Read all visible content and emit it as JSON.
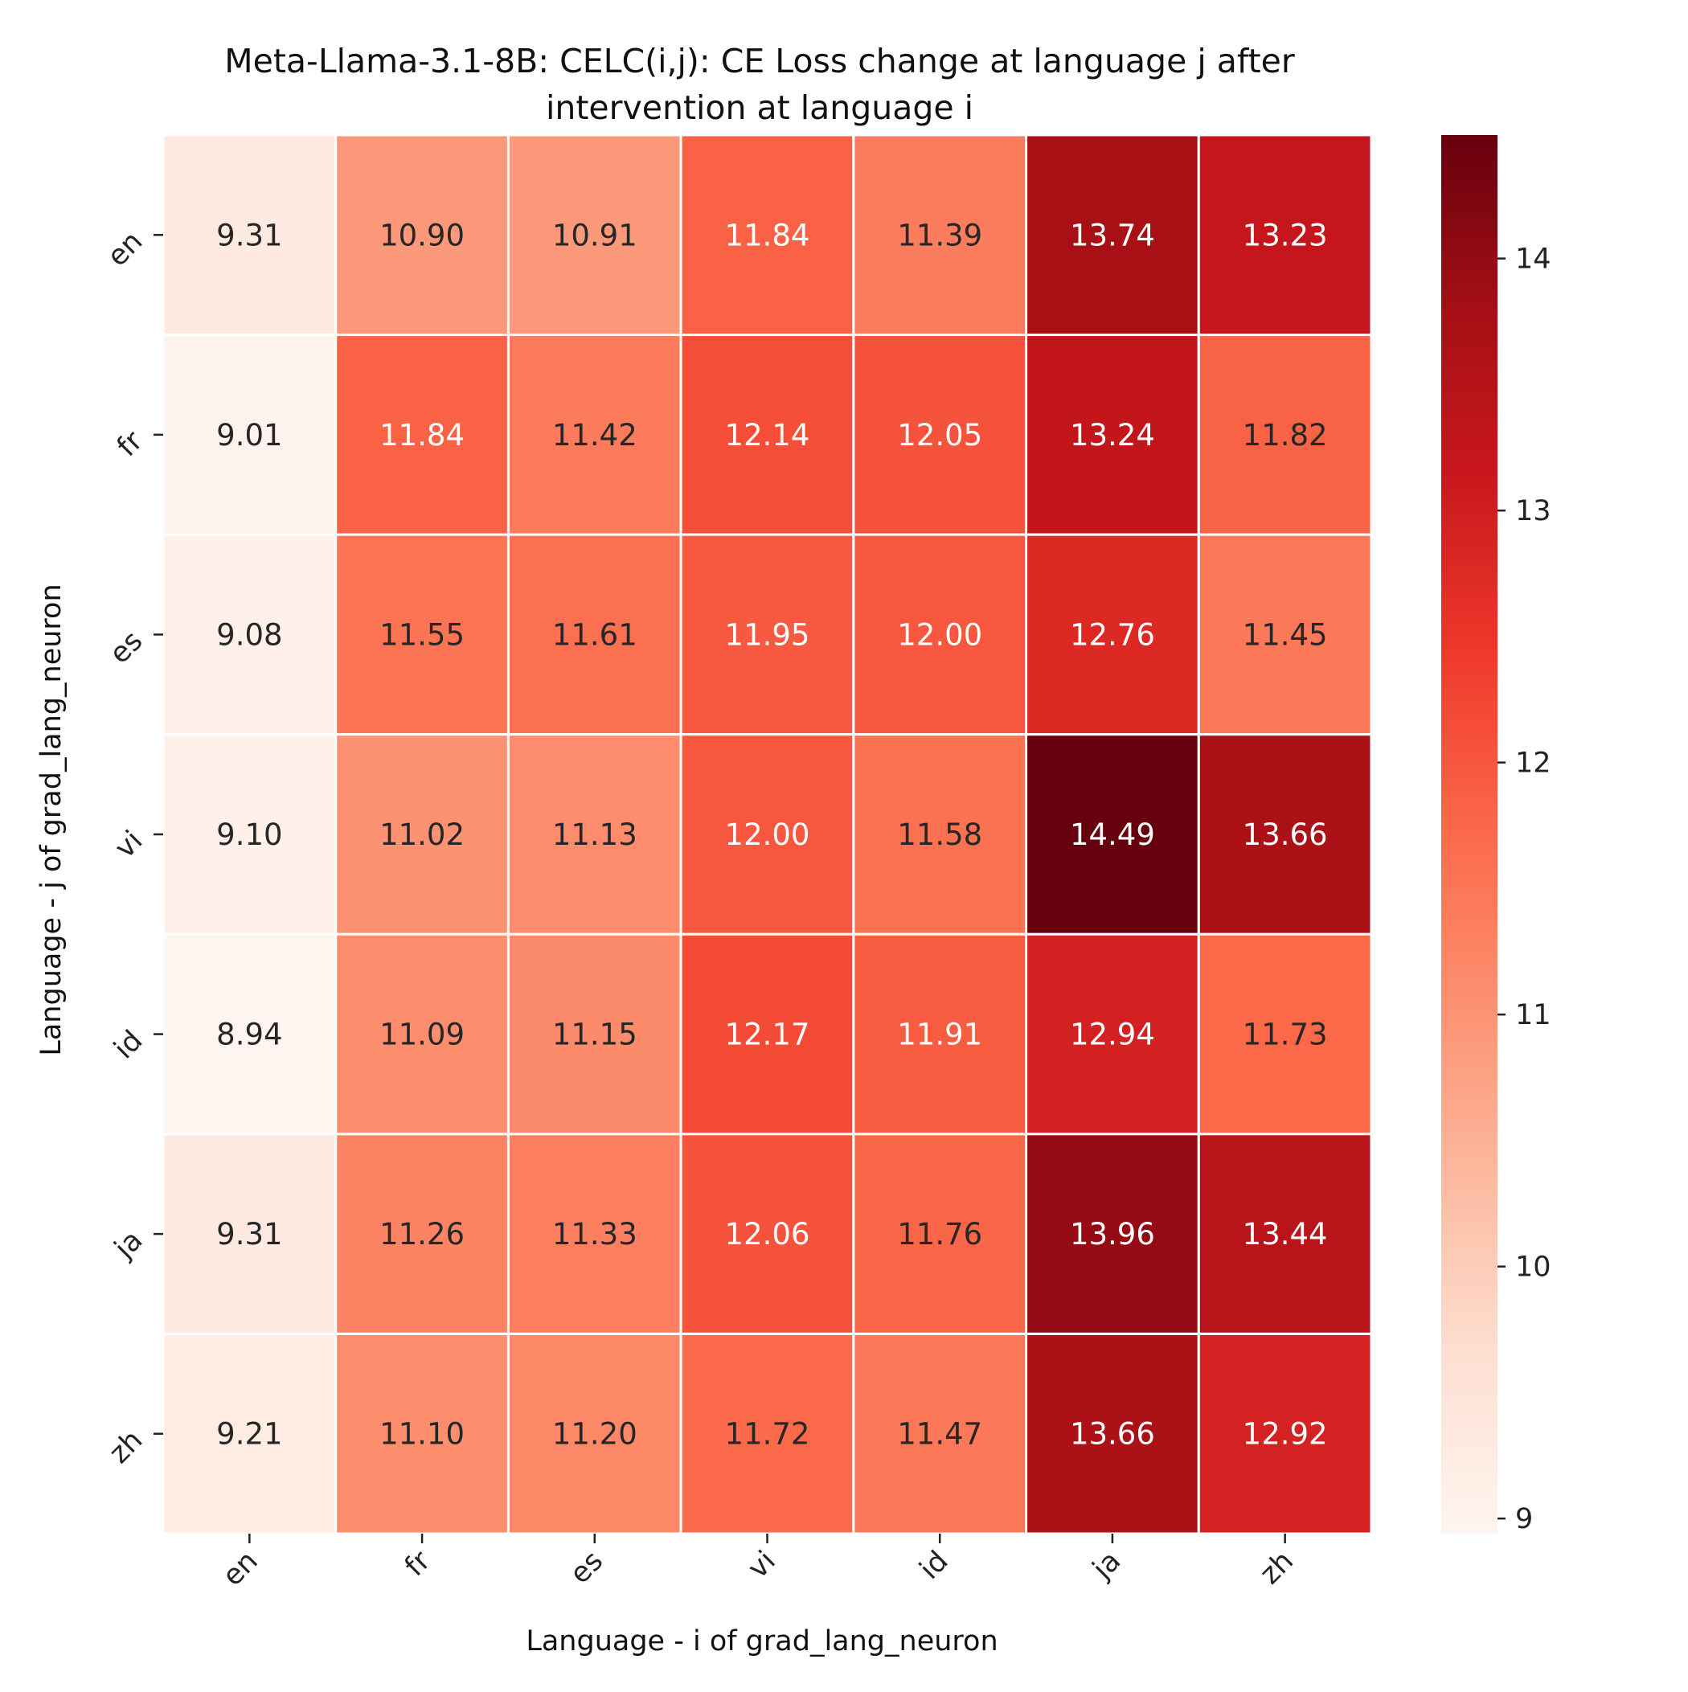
{
  "chart_data": {
    "type": "heatmap",
    "title": [
      "Meta-Llama-3.1-8B: CELC(i,j): CE Loss change at language j after",
      "intervention at language i"
    ],
    "xlabel": "Language - i of grad_lang_neuron",
    "ylabel": "Language - j of grad_lang_neuron",
    "x_categories": [
      "en",
      "fr",
      "es",
      "vi",
      "id",
      "ja",
      "zh"
    ],
    "y_categories": [
      "en",
      "fr",
      "es",
      "vi",
      "id",
      "ja",
      "zh"
    ],
    "values": [
      [
        9.31,
        10.9,
        10.91,
        11.84,
        11.39,
        13.74,
        13.23
      ],
      [
        9.01,
        11.84,
        11.42,
        12.14,
        12.05,
        13.24,
        11.82
      ],
      [
        9.08,
        11.55,
        11.61,
        11.95,
        12.0,
        12.76,
        11.45
      ],
      [
        9.1,
        11.02,
        11.13,
        12.0,
        11.58,
        14.49,
        13.66
      ],
      [
        8.94,
        11.09,
        11.15,
        12.17,
        11.91,
        12.94,
        11.73
      ],
      [
        9.31,
        11.26,
        11.33,
        12.06,
        11.76,
        13.96,
        13.44
      ],
      [
        9.21,
        11.1,
        11.2,
        11.72,
        11.47,
        13.66,
        12.92
      ]
    ],
    "value_format": "2 decimals",
    "colormap": "Reds",
    "colorbar": {
      "vmin": 8.94,
      "vmax": 14.49,
      "ticks": [
        9,
        10,
        11,
        12,
        13,
        14
      ]
    },
    "grid": false,
    "legend": "colorbar-right"
  }
}
